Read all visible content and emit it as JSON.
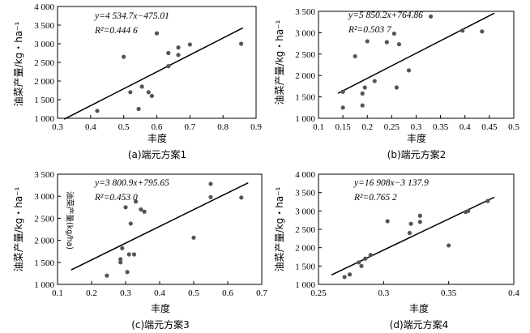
{
  "chart_data": [
    {
      "type": "scatter",
      "caption": "(a)端元方案1",
      "xlabel": "丰度",
      "ylabel": "油菜产量/kg・ha⁻¹",
      "equation": "y=4 534.7x−475.01",
      "r2_label": "R²=0.444 6",
      "slope": 4534.7,
      "intercept": -475.01,
      "xlim": [
        0.3,
        0.9
      ],
      "ylim": [
        1000,
        4000
      ],
      "xticks": [
        0.3,
        0.4,
        0.5,
        0.6,
        0.7,
        0.8,
        0.9
      ],
      "xtick_labels": [
        "0.3",
        "0.4",
        "0.5",
        "0.6",
        "0.7",
        "0.8",
        "0.9"
      ],
      "yticks": [
        1000,
        1500,
        2000,
        2500,
        3000,
        3500,
        4000
      ],
      "ytick_labels": [
        "1 000",
        "1 500",
        "2 000",
        "2 500",
        "3 000",
        "3 500",
        "4 000"
      ],
      "fit_range": [
        0.32,
        0.86
      ],
      "points": [
        [
          0.42,
          1200
        ],
        [
          0.5,
          2650
        ],
        [
          0.52,
          1700
        ],
        [
          0.545,
          1250
        ],
        [
          0.555,
          1850
        ],
        [
          0.575,
          1700
        ],
        [
          0.585,
          1600
        ],
        [
          0.6,
          3280
        ],
        [
          0.635,
          2750
        ],
        [
          0.635,
          2400
        ],
        [
          0.665,
          2900
        ],
        [
          0.665,
          2700
        ],
        [
          0.7,
          2980
        ],
        [
          0.855,
          3000
        ]
      ]
    },
    {
      "type": "scatter",
      "caption": "(b)端元方案2",
      "xlabel": "丰度",
      "ylabel": "油菜产量/kg・ha⁻¹",
      "equation": "y=5 850.2x+764.86",
      "r2_label": "R²=0.503 7",
      "slope": 5850.2,
      "intercept": 764.86,
      "xlim": [
        0.1,
        0.5
      ],
      "ylim": [
        1000,
        3500
      ],
      "xticks": [
        0.1,
        0.15,
        0.2,
        0.25,
        0.3,
        0.35,
        0.4,
        0.45,
        0.5
      ],
      "xtick_labels": [
        "0.1",
        "0.15",
        "0.2",
        "0.25",
        "0.3",
        "0.35",
        "0.4",
        "0.45",
        "0.5"
      ],
      "yticks": [
        1000,
        1500,
        2000,
        2500,
        3000,
        3500
      ],
      "ytick_labels": [
        "1 000",
        "1 500",
        "2 000",
        "2 500",
        "3 000",
        "3 500"
      ],
      "fit_range": [
        0.14,
        0.46
      ],
      "points": [
        [
          0.15,
          1250
        ],
        [
          0.15,
          1620
        ],
        [
          0.175,
          2450
        ],
        [
          0.19,
          1300
        ],
        [
          0.19,
          1580
        ],
        [
          0.195,
          1720
        ],
        [
          0.2,
          2800
        ],
        [
          0.215,
          1870
        ],
        [
          0.24,
          2780
        ],
        [
          0.255,
          2980
        ],
        [
          0.26,
          1720
        ],
        [
          0.265,
          2730
        ],
        [
          0.285,
          2120
        ],
        [
          0.33,
          3380
        ],
        [
          0.395,
          3050
        ],
        [
          0.435,
          3030
        ]
      ]
    },
    {
      "type": "scatter",
      "caption": "(c)端元方案3",
      "xlabel": "丰度",
      "ylabel": "油菜产量/kg・ha⁻¹",
      "side_note": "油菜产量(kg/ha)",
      "equation": "y=3 800.9x+795.65",
      "r2_label": "R²=0.453 0",
      "slope": 3800.9,
      "intercept": 795.65,
      "xlim": [
        0.1,
        0.7
      ],
      "ylim": [
        1000,
        3500
      ],
      "xticks": [
        0.1,
        0.2,
        0.3,
        0.4,
        0.5,
        0.6,
        0.7
      ],
      "xtick_labels": [
        "0.1",
        "0.2",
        "0.3",
        "0.4",
        "0.5",
        "0.6",
        "0.7"
      ],
      "yticks": [
        1000,
        1500,
        2000,
        2500,
        3000,
        3500
      ],
      "ytick_labels": [
        "1 000",
        "1 500",
        "2 000",
        "2 500",
        "3 000",
        "3 500"
      ],
      "fit_range": [
        0.14,
        0.66
      ],
      "points": [
        [
          0.245,
          1200
        ],
        [
          0.285,
          1500
        ],
        [
          0.285,
          1570
        ],
        [
          0.29,
          1820
        ],
        [
          0.3,
          2750
        ],
        [
          0.305,
          1280
        ],
        [
          0.31,
          1680
        ],
        [
          0.315,
          2380
        ],
        [
          0.325,
          1680
        ],
        [
          0.33,
          2880
        ],
        [
          0.345,
          2700
        ],
        [
          0.355,
          2650
        ],
        [
          0.5,
          2060
        ],
        [
          0.55,
          2980
        ],
        [
          0.55,
          3280
        ],
        [
          0.64,
          2970
        ]
      ]
    },
    {
      "type": "scatter",
      "caption": "(d)端元方案4",
      "xlabel": "丰度",
      "ylabel": "油菜产量/kg・ha⁻¹",
      "equation": "y=16 908x−3 137.9",
      "r2_label": "R²=0.765 2",
      "slope": 16908,
      "intercept": -3137.9,
      "xlim": [
        0.25,
        0.4
      ],
      "ylim": [
        1000,
        4000
      ],
      "xticks": [
        0.25,
        0.3,
        0.35,
        0.4
      ],
      "xtick_labels": [
        "0.25",
        "0.3",
        "0.35",
        "0.4"
      ],
      "yticks": [
        1000,
        1500,
        2000,
        2500,
        3000,
        3500,
        4000
      ],
      "ytick_labels": [
        "1 000",
        "1 500",
        "2 000",
        "2 500",
        "3 000",
        "3 500",
        "4 000"
      ],
      "fit_range": [
        0.26,
        0.385
      ],
      "points": [
        [
          0.27,
          1200
        ],
        [
          0.274,
          1270
        ],
        [
          0.281,
          1600
        ],
        [
          0.283,
          1500
        ],
        [
          0.286,
          1700
        ],
        [
          0.29,
          1800
        ],
        [
          0.303,
          2720
        ],
        [
          0.32,
          2400
        ],
        [
          0.321,
          2650
        ],
        [
          0.328,
          2700
        ],
        [
          0.328,
          2870
        ],
        [
          0.35,
          2060
        ],
        [
          0.363,
          2970
        ],
        [
          0.365,
          3000
        ],
        [
          0.38,
          3270
        ]
      ]
    }
  ]
}
